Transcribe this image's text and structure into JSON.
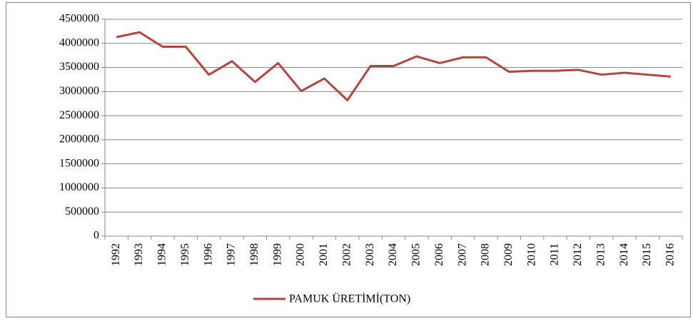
{
  "chart_data": {
    "type": "line",
    "categories": [
      "1992",
      "1993",
      "1994",
      "1995",
      "1996",
      "1997",
      "1998",
      "1999",
      "2000",
      "2001",
      "2002",
      "2003",
      "2004",
      "2005",
      "2006",
      "2007",
      "2008",
      "2009",
      "2010",
      "2011",
      "2012",
      "2013",
      "2014",
      "2015",
      "2016"
    ],
    "series": [
      {
        "name": "PAMUK ÜRETİMİ(TON)",
        "color": "#b5443f",
        "values": [
          4130000,
          4230000,
          3930000,
          3930000,
          3350000,
          3630000,
          3200000,
          3590000,
          3010000,
          3270000,
          2820000,
          3530000,
          3530000,
          3730000,
          3590000,
          3710000,
          3710000,
          3410000,
          3430000,
          3430000,
          3450000,
          3350000,
          3390000,
          3350000,
          3310000
        ]
      }
    ],
    "ylim": [
      0,
      4500000
    ],
    "yticks": [
      0,
      500000,
      1000000,
      1500000,
      2000000,
      2500000,
      3000000,
      3500000,
      4000000,
      4500000
    ],
    "grid": true,
    "legend": "bottom"
  }
}
